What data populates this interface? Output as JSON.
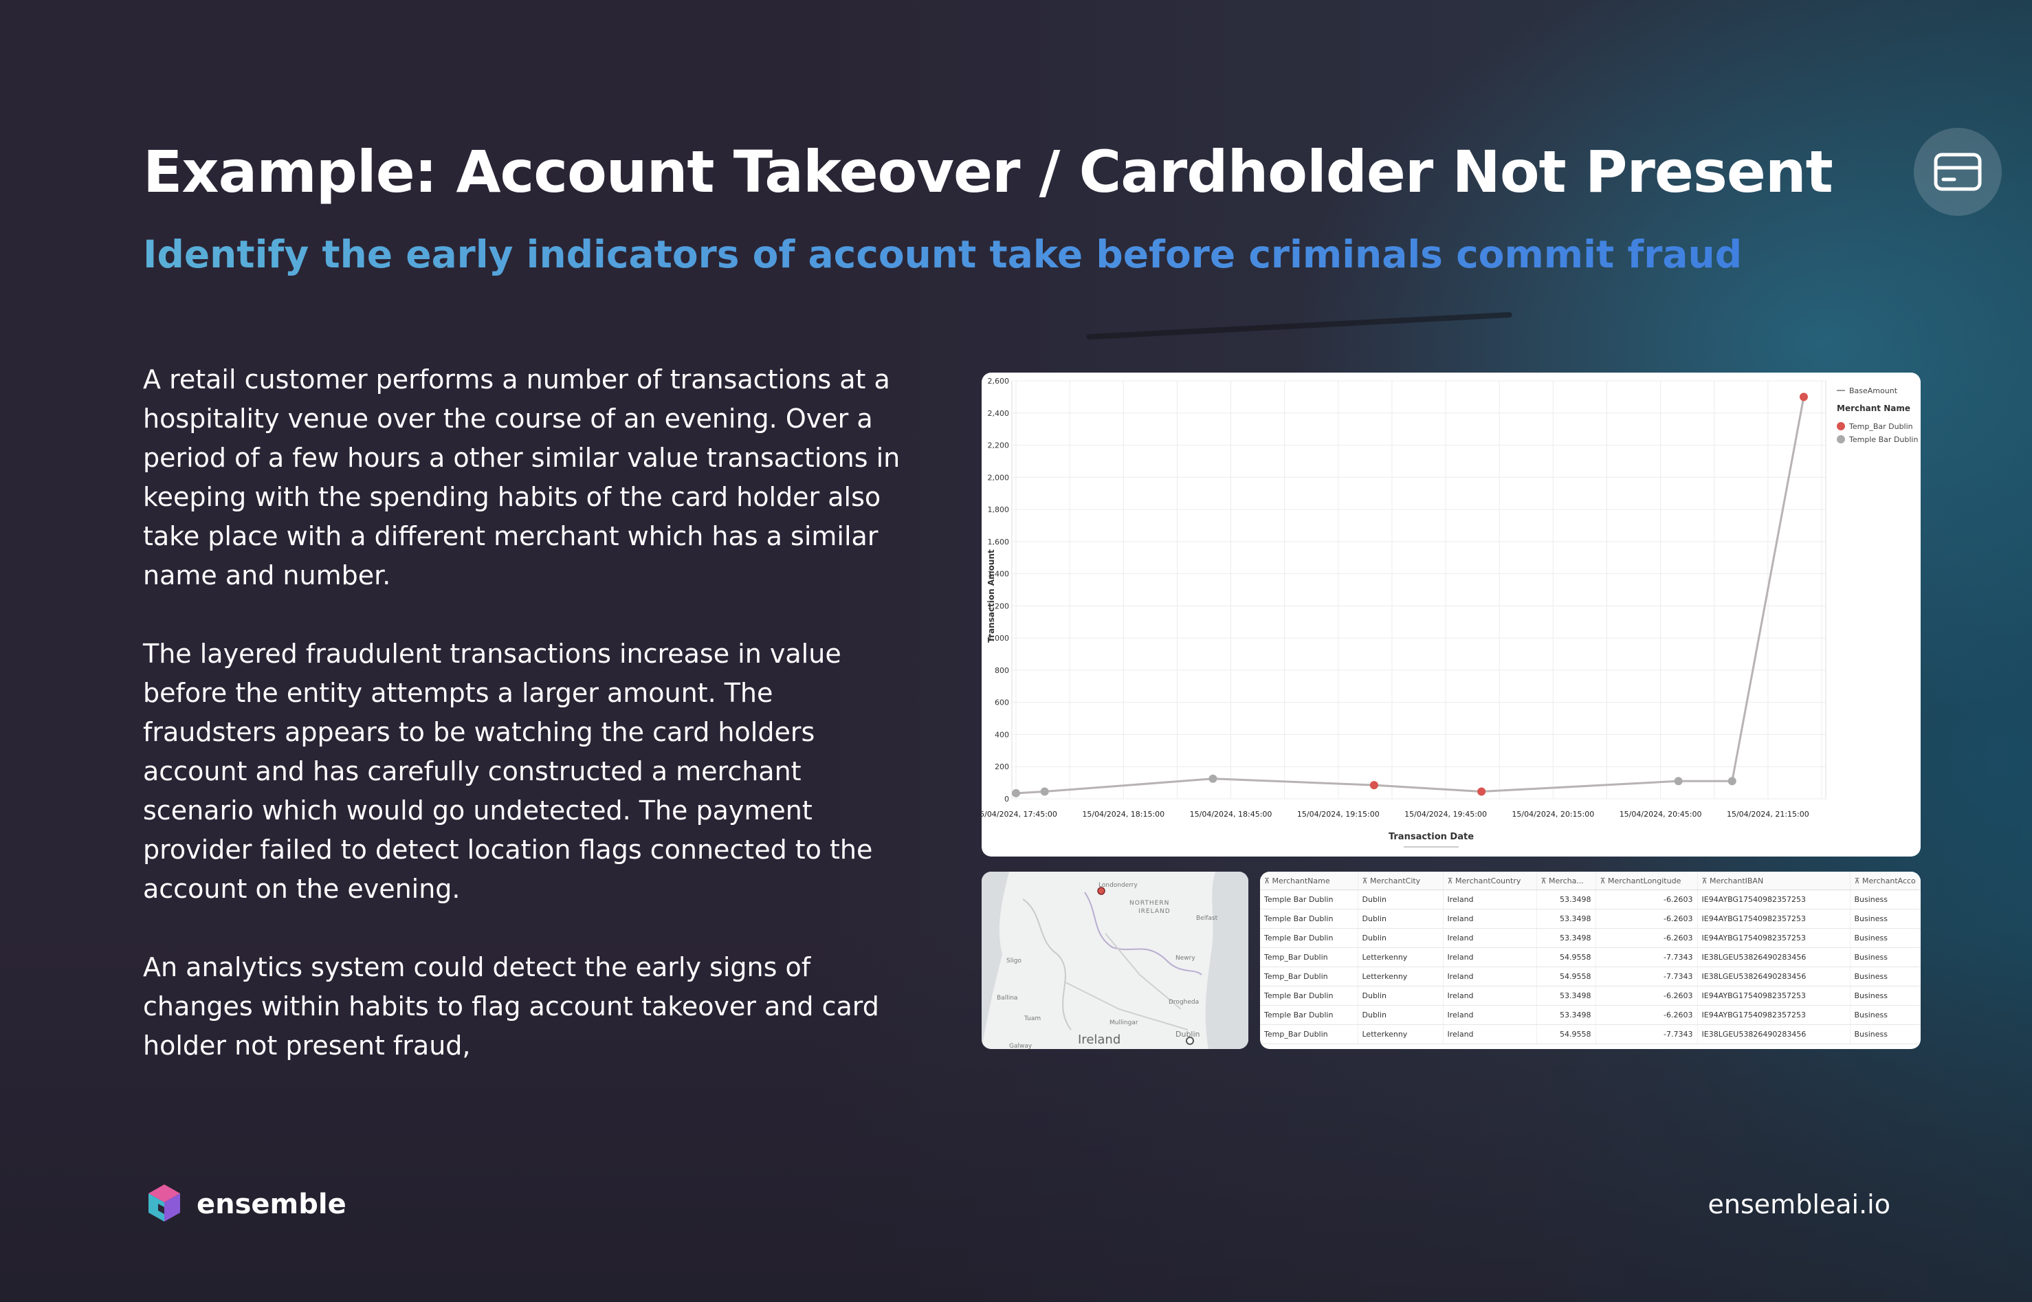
{
  "title": "Example: Account Takeover / Cardholder Not Present",
  "subtitle": "Identify the early indicators of account take before criminals commit fraud",
  "header_icon": "credit-card-icon",
  "body": {
    "p1": "A retail customer performs a number of  transactions at a hospitality venue over the course of an evening.  Over a period of a few hours a other  similar value transactions in keeping with the spending habits of the card holder also take place with a different merchant which has a similar name and number.",
    "p2": "The layered fraudulent transactions increase in value before the entity attempts a larger amount. The fraudsters appears to be watching the card holders account and has carefully constructed a merchant scenario which would go undetected. The payment provider failed to detect location flags connected to the account on the evening.",
    "p3": "An analytics system could detect the early signs of changes within habits to flag account takeover and card holder not present fraud,"
  },
  "chart_data": {
    "type": "line",
    "xlabel": "Transaction Date",
    "ylabel": "Transaction Amount",
    "ylim": [
      0,
      2600
    ],
    "yticks": [
      "0",
      "200",
      "400",
      "600",
      "800",
      "1,000",
      "1,200",
      "1,400",
      "1,600",
      "1,800",
      "2,000",
      "2,200",
      "2,400",
      "2,600"
    ],
    "xticks": [
      "15/04/2024, 17:45:00",
      "15/04/2024, 18:15:00",
      "15/04/2024, 18:45:00",
      "15/04/2024, 19:15:00",
      "15/04/2024, 19:45:00",
      "15/04/2024, 20:15:00",
      "15/04/2024, 20:45:00",
      "15/04/2024, 21:15:00"
    ],
    "grid": true,
    "legend": {
      "placement": "top-right",
      "line_label": "BaseAmount",
      "group_title": "Merchant Name",
      "items": [
        {
          "name": "Temp_Bar Dublin",
          "color": "#d9534f"
        },
        {
          "name": "Temple Bar Dublin",
          "color": "#aaaaaa"
        }
      ]
    },
    "x_minutes_since_1745": [
      0,
      8,
      55,
      100,
      130,
      185,
      200,
      220
    ],
    "points": [
      {
        "x": "15/04/2024, 17:45",
        "y": 35,
        "merchant": "Temple Bar Dublin"
      },
      {
        "x": "15/04/2024, 17:53",
        "y": 45,
        "merchant": "Temple Bar Dublin"
      },
      {
        "x": "15/04/2024, 18:40",
        "y": 125,
        "merchant": "Temple Bar Dublin"
      },
      {
        "x": "15/04/2024, 19:25",
        "y": 85,
        "merchant": "Temp_Bar Dublin"
      },
      {
        "x": "15/04/2024, 19:55",
        "y": 45,
        "merchant": "Temp_Bar Dublin"
      },
      {
        "x": "15/04/2024, 20:50",
        "y": 110,
        "merchant": "Temple Bar Dublin"
      },
      {
        "x": "15/04/2024, 21:05",
        "y": 110,
        "merchant": "Temple Bar Dublin"
      },
      {
        "x": "15/04/2024, 21:25",
        "y": 2500,
        "merchant": "Temp_Bar Dublin"
      }
    ],
    "line_color": "#b8b2b2"
  },
  "map": {
    "labels": [
      "Londonderry",
      "NORTHERN",
      "IRELAND",
      "Belfast",
      "Newry",
      "Mullingar",
      "Drogheda",
      "Dublin",
      "Sligo",
      "Ireland",
      "Galway",
      "Tuam",
      "Ballina"
    ]
  },
  "table": {
    "columns": [
      "MerchantName",
      "MerchantCity",
      "MerchantCountry",
      "Mercha...",
      "MerchantLongitude",
      "MerchantIBAN",
      "MerchantAcco"
    ],
    "rows": [
      [
        "Temple Bar Dublin",
        "Dublin",
        "Ireland",
        "53.3498",
        "-6.2603",
        "IE94AYBG17540982357253",
        "Business"
      ],
      [
        "Temple Bar Dublin",
        "Dublin",
        "Ireland",
        "53.3498",
        "-6.2603",
        "IE94AYBG17540982357253",
        "Business"
      ],
      [
        "Temple Bar Dublin",
        "Dublin",
        "Ireland",
        "53.3498",
        "-6.2603",
        "IE94AYBG17540982357253",
        "Business"
      ],
      [
        "Temp_Bar Dublin",
        "Letterkenny",
        "Ireland",
        "54.9558",
        "-7.7343",
        "IE38LGEU53826490283456",
        "Business"
      ],
      [
        "Temp_Bar Dublin",
        "Letterkenny",
        "Ireland",
        "54.9558",
        "-7.7343",
        "IE38LGEU53826490283456",
        "Business"
      ],
      [
        "Temple Bar Dublin",
        "Dublin",
        "Ireland",
        "53.3498",
        "-6.2603",
        "IE94AYBG17540982357253",
        "Business"
      ],
      [
        "Temple Bar Dublin",
        "Dublin",
        "Ireland",
        "53.3498",
        "-6.2603",
        "IE94AYBG17540982357253",
        "Business"
      ],
      [
        "Temp_Bar Dublin",
        "Letterkenny",
        "Ireland",
        "54.9558",
        "-7.7343",
        "IE38LGEU53826490283456",
        "Business"
      ]
    ]
  },
  "footer": {
    "logo_text": "ensemble",
    "website": "ensembleai.io"
  }
}
